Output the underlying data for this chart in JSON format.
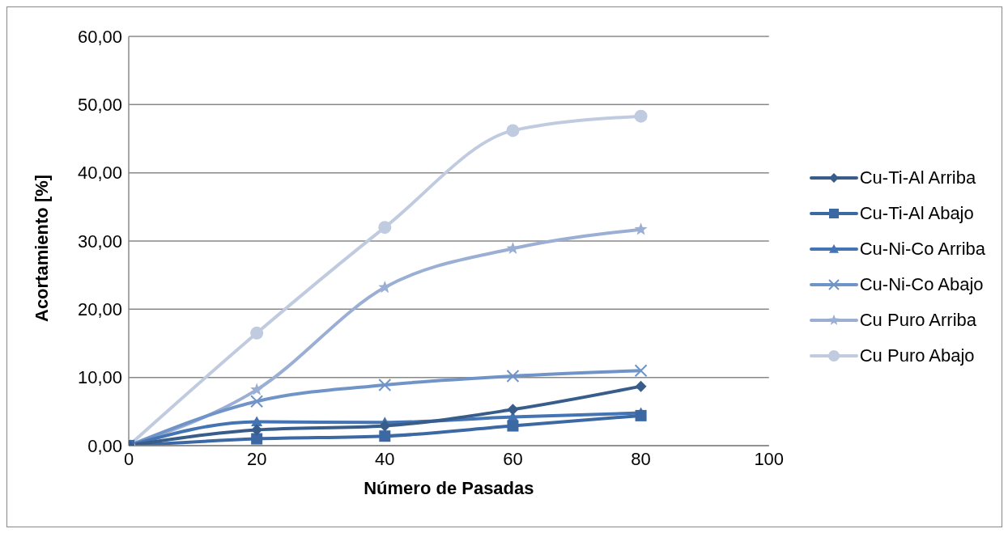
{
  "chart_data": {
    "type": "line",
    "xlabel": "Número de Pasadas",
    "ylabel": "Acortamiento [%]",
    "x": [
      0,
      20,
      40,
      60,
      80
    ],
    "series": [
      {
        "name": "Cu-Ti-Al Arriba",
        "color": "#385d8a",
        "marker": "diamond",
        "values": [
          0,
          2.3,
          2.9,
          5.3,
          8.7
        ]
      },
      {
        "name": "Cu-Ti-Al Abajo",
        "color": "#3c69a3",
        "marker": "square",
        "values": [
          0,
          1.0,
          1.4,
          2.9,
          4.4
        ]
      },
      {
        "name": "Cu-Ni-Co Arriba",
        "color": "#4474b3",
        "marker": "triangle",
        "values": [
          0,
          3.5,
          3.4,
          4.2,
          4.8
        ]
      },
      {
        "name": "Cu-Ni-Co Abajo",
        "color": "#7094c8",
        "marker": "cross",
        "values": [
          0,
          6.5,
          8.9,
          10.2,
          11.0
        ]
      },
      {
        "name": "Cu Puro Arriba",
        "color": "#9aafd3",
        "marker": "star",
        "values": [
          0,
          8.2,
          23.2,
          28.9,
          31.7
        ]
      },
      {
        "name": "Cu Puro Abajo",
        "color": "#c0cbe0",
        "marker": "circle",
        "values": [
          0,
          16.5,
          32.0,
          46.2,
          48.3
        ]
      }
    ],
    "xlim": [
      0,
      100
    ],
    "xticks": [
      0,
      20,
      40,
      60,
      80,
      100
    ],
    "ylim": [
      0,
      60
    ],
    "yticks": [
      {
        "value": 0,
        "label": "0,00"
      },
      {
        "value": 10,
        "label": "10,00"
      },
      {
        "value": 20,
        "label": "20,00"
      },
      {
        "value": 30,
        "label": "30,00"
      },
      {
        "value": 40,
        "label": "40,00"
      },
      {
        "value": 50,
        "label": "50,00"
      },
      {
        "value": 60,
        "label": "60,00"
      }
    ],
    "grid": "y",
    "legend": "right",
    "line_style": "solid"
  }
}
